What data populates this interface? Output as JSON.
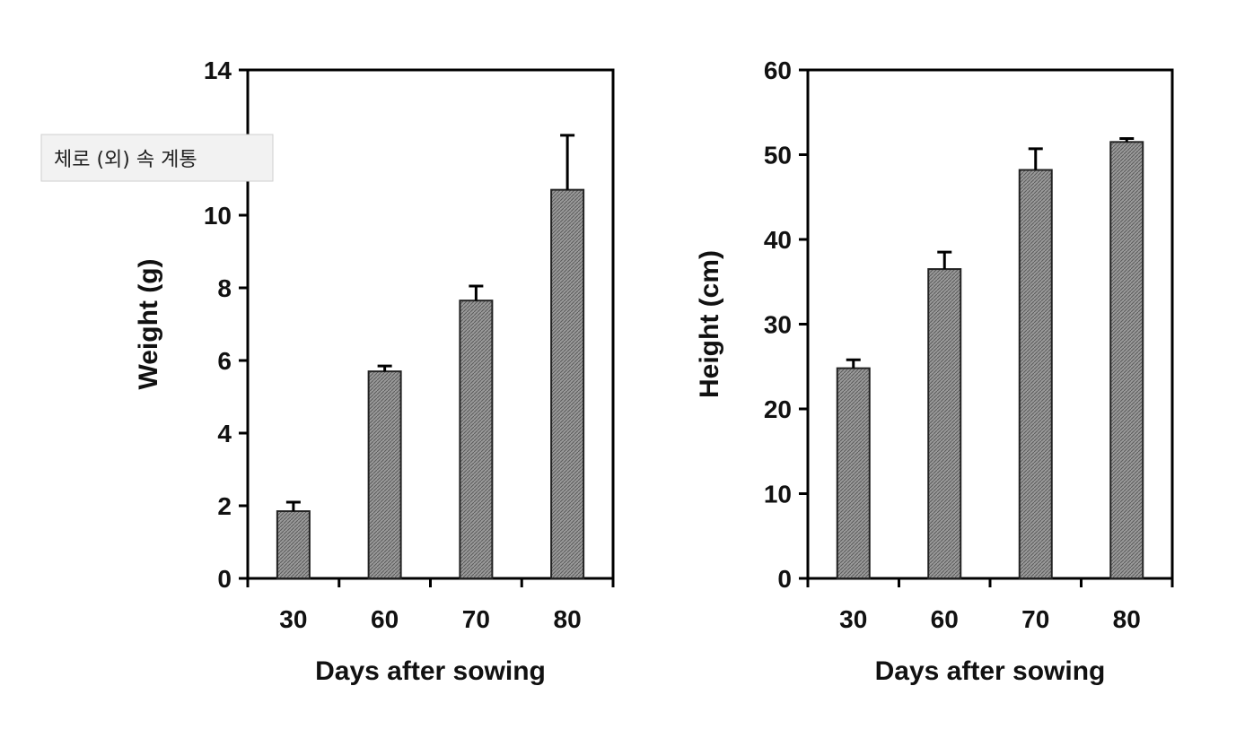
{
  "overlay_label": "체로 (외) 속 계통",
  "chart_data": [
    {
      "type": "bar",
      "xlabel": "Days after sowing",
      "ylabel": "Weight (g)",
      "categories": [
        "30",
        "60",
        "70",
        "80"
      ],
      "values": [
        1.85,
        5.7,
        7.65,
        10.7
      ],
      "errors": [
        0.25,
        0.15,
        0.4,
        1.5
      ],
      "ylim": [
        0,
        14
      ],
      "yticks": [
        0,
        2,
        4,
        6,
        8,
        10,
        12,
        14
      ],
      "bar_color": "#8a8a8a",
      "grid": false
    },
    {
      "type": "bar",
      "xlabel": "Days after sowing",
      "ylabel": "Height (cm)",
      "categories": [
        "30",
        "60",
        "70",
        "80"
      ],
      "values": [
        24.8,
        36.5,
        48.2,
        51.5
      ],
      "errors": [
        1.0,
        2.0,
        2.5,
        0.4
      ],
      "ylim": [
        0,
        60
      ],
      "yticks": [
        0,
        10,
        20,
        30,
        40,
        50,
        60
      ],
      "bar_color": "#8a8a8a",
      "grid": false
    }
  ]
}
